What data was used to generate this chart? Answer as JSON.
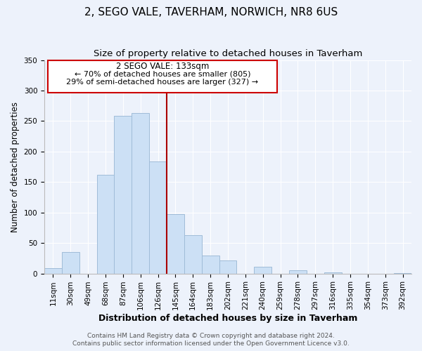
{
  "title": "2, SEGO VALE, TAVERHAM, NORWICH, NR8 6US",
  "subtitle": "Size of property relative to detached houses in Taverham",
  "xlabel": "Distribution of detached houses by size in Taverham",
  "ylabel": "Number of detached properties",
  "bar_color": "#cce0f5",
  "bar_edge_color": "#a0bcd8",
  "categories": [
    "11sqm",
    "30sqm",
    "49sqm",
    "68sqm",
    "87sqm",
    "106sqm",
    "126sqm",
    "145sqm",
    "164sqm",
    "183sqm",
    "202sqm",
    "221sqm",
    "240sqm",
    "259sqm",
    "278sqm",
    "297sqm",
    "316sqm",
    "335sqm",
    "354sqm",
    "373sqm",
    "392sqm"
  ],
  "values": [
    9,
    35,
    0,
    162,
    259,
    263,
    184,
    97,
    63,
    30,
    21,
    0,
    11,
    0,
    5,
    0,
    2,
    0,
    0,
    0,
    1
  ],
  "vline_x": 6.5,
  "vline_color": "#aa0000",
  "annotation_title": "2 SEGO VALE: 133sqm",
  "annotation_line1": "← 70% of detached houses are smaller (805)",
  "annotation_line2": "29% of semi-detached houses are larger (327) →",
  "ylim": [
    0,
    350
  ],
  "yticks": [
    0,
    50,
    100,
    150,
    200,
    250,
    300,
    350
  ],
  "footer1": "Contains HM Land Registry data © Crown copyright and database right 2024.",
  "footer2": "Contains public sector information licensed under the Open Government Licence v3.0.",
  "background_color": "#edf2fb",
  "grid_color": "#ffffff",
  "title_fontsize": 11,
  "subtitle_fontsize": 9.5,
  "xlabel_fontsize": 9,
  "ylabel_fontsize": 8.5,
  "tick_fontsize": 7.5,
  "footer_fontsize": 6.5
}
